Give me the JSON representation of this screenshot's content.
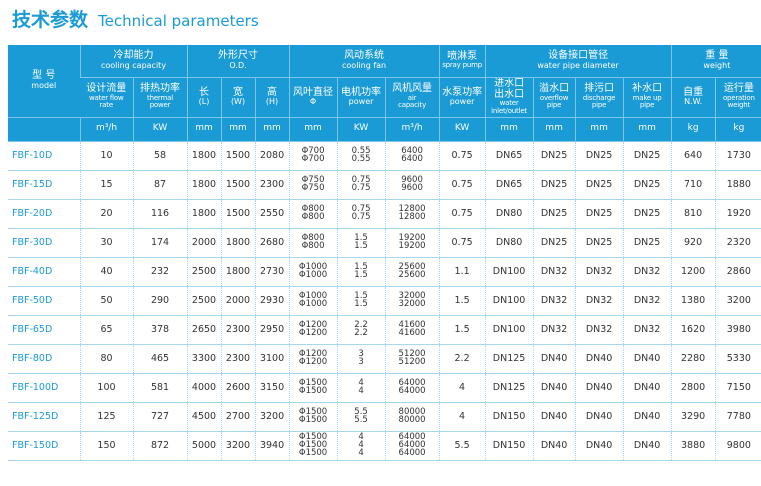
{
  "title": {
    "cn": "技术参数",
    "en": "Technical parameters"
  },
  "header": {
    "model": {
      "cn": "型 号",
      "en": "model"
    },
    "cooling_capacity": {
      "cn": "冷却能力",
      "en": "cooling capacity"
    },
    "od": {
      "cn": "外形尺寸",
      "en": "O.D."
    },
    "cooling_fan": {
      "cn": "风动系统",
      "en": "cooling fan"
    },
    "spray_pump": {
      "cn": "喷淋泵",
      "en": "spray pump"
    },
    "pipe": {
      "cn": "设备接口管径",
      "en": "water pipe diameter"
    },
    "weight": {
      "cn": "重 量",
      "en": "weight"
    },
    "sub": {
      "flow": {
        "cn": "设计流量",
        "en1": "water flow",
        "en2": "rate"
      },
      "thermal": {
        "cn": "排热功率",
        "en1": "thermal",
        "en2": "power"
      },
      "length": {
        "cn": "长",
        "en": "(L)"
      },
      "width": {
        "cn": "宽",
        "en": "(W)"
      },
      "height": {
        "cn": "高",
        "en": "(H)"
      },
      "fan_dia": {
        "cn": "风叶直径",
        "en": "Φ"
      },
      "motor": {
        "cn": "电机功率",
        "en": "power"
      },
      "air": {
        "cn": "风机风量",
        "en1": "air",
        "en2": "capacity"
      },
      "pump": {
        "cn": "水泵功率",
        "en": "power"
      },
      "inlet": {
        "cn1": "进水口",
        "cn2": "出水口",
        "en1": "water",
        "en2": "inlet/outlet"
      },
      "overflow": {
        "cn": "溢水口",
        "en1": "overflow",
        "en2": "pipe"
      },
      "drain": {
        "cn": "排污口",
        "en1": "discharge",
        "en2": "pipe"
      },
      "makeup": {
        "cn": "补水口",
        "en1": "make up",
        "en2": "pipe"
      },
      "net": {
        "cn": "自重",
        "en": "N.W."
      },
      "op": {
        "cn": "运行量",
        "en1": "operation",
        "en2": "weight"
      }
    },
    "units": [
      "m³/h",
      "KW",
      "mm",
      "mm",
      "mm",
      "mm",
      "KW",
      "m³/h",
      "KW",
      "mm",
      "mm",
      "mm",
      "mm",
      "kg",
      "kg"
    ]
  },
  "rows": [
    {
      "model": "FBF-10D",
      "flow": "10",
      "kw": "58",
      "l": "1800",
      "w": "1500",
      "h": "2080",
      "fan": [
        "Φ700",
        "Φ700"
      ],
      "motor": [
        "0.55",
        "0.55"
      ],
      "air": [
        "6400",
        "6400"
      ],
      "pump": "0.75",
      "inlet": "DN65",
      "overflow": "DN25",
      "drain": "DN25",
      "makeup": "DN25",
      "nw": "640",
      "ow": "1730"
    },
    {
      "model": "FBF-15D",
      "flow": "15",
      "kw": "87",
      "l": "1800",
      "w": "1500",
      "h": "2300",
      "fan": [
        "Φ750",
        "Φ750"
      ],
      "motor": [
        "0.75",
        "0.75"
      ],
      "air": [
        "9600",
        "9600"
      ],
      "pump": "0.75",
      "inlet": "DN65",
      "overflow": "DN25",
      "drain": "DN25",
      "makeup": "DN25",
      "nw": "710",
      "ow": "1880"
    },
    {
      "model": "FBF-20D",
      "flow": "20",
      "kw": "116",
      "l": "1800",
      "w": "1500",
      "h": "2550",
      "fan": [
        "Φ800",
        "Φ800"
      ],
      "motor": [
        "0.75",
        "0.75"
      ],
      "air": [
        "12800",
        "12800"
      ],
      "pump": "0.75",
      "inlet": "DN80",
      "overflow": "DN25",
      "drain": "DN25",
      "makeup": "DN25",
      "nw": "810",
      "ow": "1920"
    },
    {
      "model": "FBF-30D",
      "flow": "30",
      "kw": "174",
      "l": "2000",
      "w": "1800",
      "h": "2680",
      "fan": [
        "Φ800",
        "Φ800"
      ],
      "motor": [
        "1.5",
        "1.5"
      ],
      "air": [
        "19200",
        "19200"
      ],
      "pump": "0.75",
      "inlet": "DN80",
      "overflow": "DN25",
      "drain": "DN25",
      "makeup": "DN25",
      "nw": "920",
      "ow": "2320"
    },
    {
      "model": "FBF-40D",
      "flow": "40",
      "kw": "232",
      "l": "2500",
      "w": "1800",
      "h": "2730",
      "fan": [
        "Φ1000",
        "Φ1000"
      ],
      "motor": [
        "1.5",
        "1.5"
      ],
      "air": [
        "25600",
        "25600"
      ],
      "pump": "1.1",
      "inlet": "DN100",
      "overflow": "DN32",
      "drain": "DN32",
      "makeup": "DN32",
      "nw": "1200",
      "ow": "2860"
    },
    {
      "model": "FBF-50D",
      "flow": "50",
      "kw": "290",
      "l": "2500",
      "w": "2000",
      "h": "2930",
      "fan": [
        "Φ1000",
        "Φ1000"
      ],
      "motor": [
        "1.5",
        "1.5"
      ],
      "air": [
        "32000",
        "32000"
      ],
      "pump": "1.5",
      "inlet": "DN100",
      "overflow": "DN32",
      "drain": "DN32",
      "makeup": "DN32",
      "nw": "1380",
      "ow": "3200"
    },
    {
      "model": "FBF-65D",
      "flow": "65",
      "kw": "378",
      "l": "2650",
      "w": "2300",
      "h": "2950",
      "fan": [
        "Φ1200",
        "Φ1200"
      ],
      "motor": [
        "2.2",
        "2.2"
      ],
      "air": [
        "41600",
        "41600"
      ],
      "pump": "1.5",
      "inlet": "DN100",
      "overflow": "DN32",
      "drain": "DN32",
      "makeup": "DN32",
      "nw": "1620",
      "ow": "3980"
    },
    {
      "model": "FBF-80D",
      "flow": "80",
      "kw": "465",
      "l": "3300",
      "w": "2300",
      "h": "3100",
      "fan": [
        "Φ1200",
        "Φ1200"
      ],
      "motor": [
        "3",
        "3"
      ],
      "air": [
        "51200",
        "51200"
      ],
      "pump": "2.2",
      "inlet": "DN125",
      "overflow": "DN40",
      "drain": "DN40",
      "makeup": "DN40",
      "nw": "2280",
      "ow": "5330"
    },
    {
      "model": "FBF-100D",
      "flow": "100",
      "kw": "581",
      "l": "4000",
      "w": "2600",
      "h": "3150",
      "fan": [
        "Φ1500",
        "Φ1500"
      ],
      "motor": [
        "4",
        "4"
      ],
      "air": [
        "64000",
        "64000"
      ],
      "pump": "4",
      "inlet": "DN125",
      "overflow": "DN40",
      "drain": "DN40",
      "makeup": "DN40",
      "nw": "2800",
      "ow": "7150"
    },
    {
      "model": "FBF-125D",
      "flow": "125",
      "kw": "727",
      "l": "4500",
      "w": "2700",
      "h": "3200",
      "fan": [
        "Φ1500",
        "Φ1500"
      ],
      "motor": [
        "5.5",
        "5.5"
      ],
      "air": [
        "80000",
        "80000"
      ],
      "pump": "4",
      "inlet": "DN150",
      "overflow": "DN40",
      "drain": "DN40",
      "makeup": "DN40",
      "nw": "3290",
      "ow": "7780"
    },
    {
      "model": "FBF-150D",
      "flow": "150",
      "kw": "872",
      "l": "5000",
      "w": "3200",
      "h": "3940",
      "fan": [
        "Φ1500",
        "Φ1500",
        "Φ1500"
      ],
      "motor": [
        "4",
        "4",
        "4"
      ],
      "air": [
        "64000",
        "64000",
        "64000"
      ],
      "pump": "5.5",
      "inlet": "DN150",
      "overflow": "DN40",
      "drain": "DN40",
      "makeup": "DN40",
      "nw": "3880",
      "ow": "9800"
    }
  ],
  "colors": {
    "accent": "#1a9bd6",
    "rule": "#a8d8f0",
    "text": "#333333"
  }
}
